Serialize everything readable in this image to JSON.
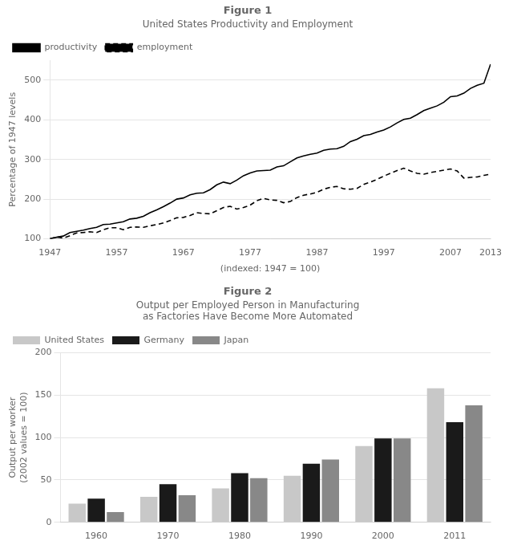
{
  "chart_data": [
    {
      "type": "line",
      "title": "Figure 1",
      "subtitle": "United States Productivity and Employment",
      "xlabel": "(indexed: 1947 = 100)",
      "ylabel": "Percentage of 1947 levels",
      "x": [
        1947,
        1948,
        1949,
        1950,
        1951,
        1952,
        1953,
        1954,
        1955,
        1956,
        1957,
        1958,
        1959,
        1960,
        1961,
        1962,
        1963,
        1964,
        1965,
        1966,
        1967,
        1968,
        1969,
        1970,
        1971,
        1972,
        1973,
        1974,
        1975,
        1976,
        1977,
        1978,
        1979,
        1980,
        1981,
        1982,
        1983,
        1984,
        1985,
        1986,
        1987,
        1988,
        1989,
        1990,
        1991,
        1992,
        1993,
        1994,
        1995,
        1996,
        1997,
        1998,
        1999,
        2000,
        2001,
        2002,
        2003,
        2004,
        2005,
        2006,
        2007,
        2008,
        2009,
        2010,
        2011,
        2012,
        2013
      ],
      "series": [
        {
          "name": "productivity",
          "color": "#000000",
          "line_style": "solid",
          "values": [
            100,
            104,
            107,
            116,
            119,
            122,
            126,
            129,
            136,
            137,
            140,
            143,
            150,
            152,
            157,
            166,
            173,
            181,
            190,
            200,
            203,
            211,
            215,
            216,
            224,
            236,
            243,
            239,
            248,
            259,
            266,
            271,
            272,
            273,
            281,
            284,
            294,
            304,
            309,
            313,
            316,
            323,
            326,
            327,
            333,
            345,
            351,
            360,
            363,
            369,
            374,
            382,
            392,
            401,
            404,
            413,
            423,
            429,
            435,
            444,
            458,
            460,
            467,
            479,
            487,
            492,
            540
          ]
        },
        {
          "name": "employment",
          "color": "#000000",
          "line_style": "dashed",
          "values": [
            100,
            105,
            102,
            108,
            115,
            116,
            118,
            116,
            123,
            128,
            128,
            123,
            129,
            130,
            129,
            133,
            136,
            140,
            146,
            153,
            154,
            159,
            166,
            164,
            163,
            171,
            179,
            182,
            175,
            179,
            185,
            196,
            202,
            198,
            197,
            191,
            194,
            204,
            210,
            213,
            217,
            225,
            230,
            232,
            226,
            225,
            227,
            237,
            243,
            250,
            258,
            265,
            272,
            278,
            271,
            265,
            263,
            267,
            270,
            273,
            276,
            271,
            253,
            255,
            256,
            260,
            263
          ]
        }
      ],
      "xlim": [
        1947,
        2013
      ],
      "xticks": [
        1947,
        1957,
        1967,
        1977,
        1987,
        1997,
        2007,
        2013
      ],
      "ylim": [
        100,
        550
      ],
      "yticks": [
        100,
        200,
        300,
        400,
        500
      ],
      "grid": "y",
      "legend": "upper left"
    },
    {
      "type": "bar",
      "title": "Figure 2",
      "subtitle": [
        "Output per Employed Person in Manufacturing",
        "as Factories Have Become More Automated"
      ],
      "ylabel": [
        "Output per worker",
        "(2002 values = 100)"
      ],
      "categories": [
        "1960",
        "1970",
        "1980",
        "1990",
        "2000",
        "2011"
      ],
      "series": [
        {
          "name": "United States",
          "color": "#c8c8c8",
          "values": [
            22,
            30,
            40,
            55,
            90,
            158
          ]
        },
        {
          "name": "Germany",
          "color": "#1a1a1a",
          "values": [
            28,
            45,
            58,
            69,
            99,
            118
          ]
        },
        {
          "name": "Japan",
          "color": "#888888",
          "values": [
            12,
            32,
            52,
            74,
            99,
            138
          ]
        }
      ],
      "ylim": [
        0,
        200
      ],
      "yticks": [
        0,
        50,
        100,
        150,
        200
      ],
      "grid": "y",
      "legend": "upper left"
    }
  ]
}
